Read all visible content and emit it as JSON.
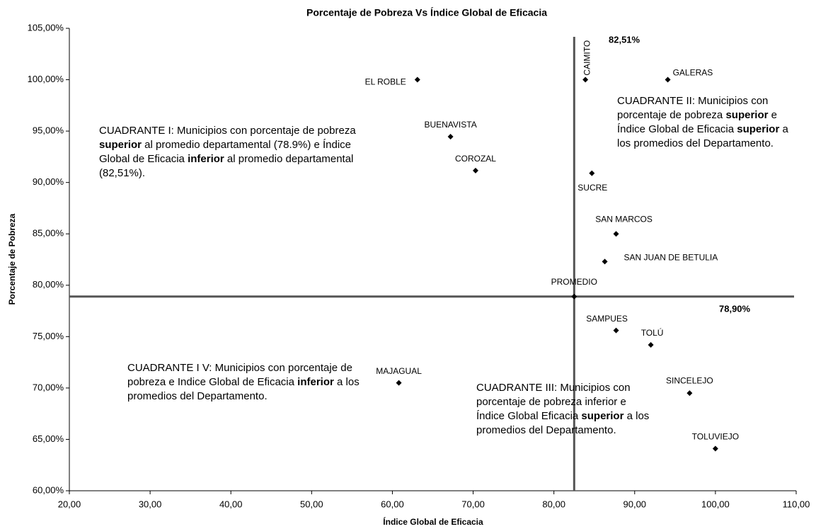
{
  "chart_data": {
    "type": "scatter",
    "title": "Porcentaje de Pobreza  Vs  Índice Global de Eficacia",
    "x_label": "Índice Global de Eficacia",
    "y_label": "Porcentaje de Pobreza",
    "labels": [
      "EL ROBLE",
      "CAIMITO",
      "GALERAS",
      "BUENAVISTA",
      "COROZAL",
      "SUCRE",
      "SAN MARCOS",
      "SAN JUAN DE BETULIA",
      "PROMEDIO",
      "SAMPUES",
      "TOLÚ",
      "MAJAGUAL",
      "SINCELEJO",
      "TOLUVIEJO"
    ],
    "x": [
      63.1,
      83.9,
      94.1,
      67.2,
      70.3,
      84.7,
      87.7,
      86.3,
      82.51,
      87.7,
      92.0,
      60.8,
      96.8,
      100.0
    ],
    "values": [
      100,
      100,
      100,
      94.46,
      91.16,
      90.9,
      85.0,
      82.3,
      78.9,
      75.6,
      74.2,
      70.5,
      69.5,
      64.1
    ],
    "color": "#000000",
    "xlim": [
      20,
      110
    ],
    "xticks": [
      {
        "value": 20,
        "label": "20,00"
      },
      {
        "value": 30,
        "label": "30,00"
      },
      {
        "value": 40,
        "label": "40,00"
      },
      {
        "value": 50,
        "label": "50,00"
      },
      {
        "value": 60,
        "label": "60,00"
      },
      {
        "value": 70,
        "label": "70,00"
      },
      {
        "value": 80,
        "label": "80,00"
      },
      {
        "value": 90,
        "label": "90,00"
      },
      {
        "value": 100,
        "label": "100,00"
      },
      {
        "value": 110,
        "label": "110,00"
      }
    ],
    "ylim": [
      60,
      105
    ],
    "yticks": [
      {
        "value": 60,
        "label": "60,00%"
      },
      {
        "value": 65,
        "label": "65,00%"
      },
      {
        "value": 70,
        "label": "70,00%"
      },
      {
        "value": 75,
        "label": "75,00%"
      },
      {
        "value": 80,
        "label": "80,00%"
      },
      {
        "value": 85,
        "label": "85,00%"
      },
      {
        "value": 90,
        "label": "90,00%"
      },
      {
        "value": 95,
        "label": "95,00%"
      },
      {
        "value": 100,
        "label": "100,00%"
      },
      {
        "value": 105,
        "label": "105,00%"
      }
    ],
    "vline": {
      "value": 82.51,
      "label": "82,51%"
    },
    "hline": {
      "value": 78.9,
      "label": "78,90%"
    },
    "line_color": "#555555",
    "annotations": [
      {
        "runs": [
          {
            "text": "CUADRANTE I: Municipios con porcentaje de pobreza ",
            "bold": false
          },
          {
            "text": "superior",
            "bold": true
          },
          {
            "text": " al promedio departamental (78.9%) e Índice Global de Eficacia ",
            "bold": false
          },
          {
            "text": "inferior",
            "bold": true
          },
          {
            "text": " al promedio departamental (82,51%).",
            "bold": false
          }
        ]
      },
      {
        "runs": [
          {
            "text": "CUADRANTE II: Municipios con porcentaje de pobreza ",
            "bold": false
          },
          {
            "text": "superior",
            "bold": true
          },
          {
            "text": " e Índice Global de Eficacia ",
            "bold": false
          },
          {
            "text": "superior",
            "bold": true
          },
          {
            "text": " a los promedios del Departamento.",
            "bold": false
          }
        ]
      },
      {
        "runs": [
          {
            "text": "CUADRANTE I V: Municipios con porcentaje de pobreza e Indice Global de Eficacia ",
            "bold": false
          },
          {
            "text": "inferior",
            "bold": true
          },
          {
            "text": " a los promedios del Departamento.",
            "bold": false
          }
        ]
      },
      {
        "runs": [
          {
            "text": "CUADRANTE III: Municipios con porcentaje de pobreza inferior e Índice Global Eficacia ",
            "bold": false
          },
          {
            "text": "superior",
            "bold": true
          },
          {
            "text": " a los promedios del Departamento.",
            "bold": false
          }
        ]
      }
    ]
  }
}
